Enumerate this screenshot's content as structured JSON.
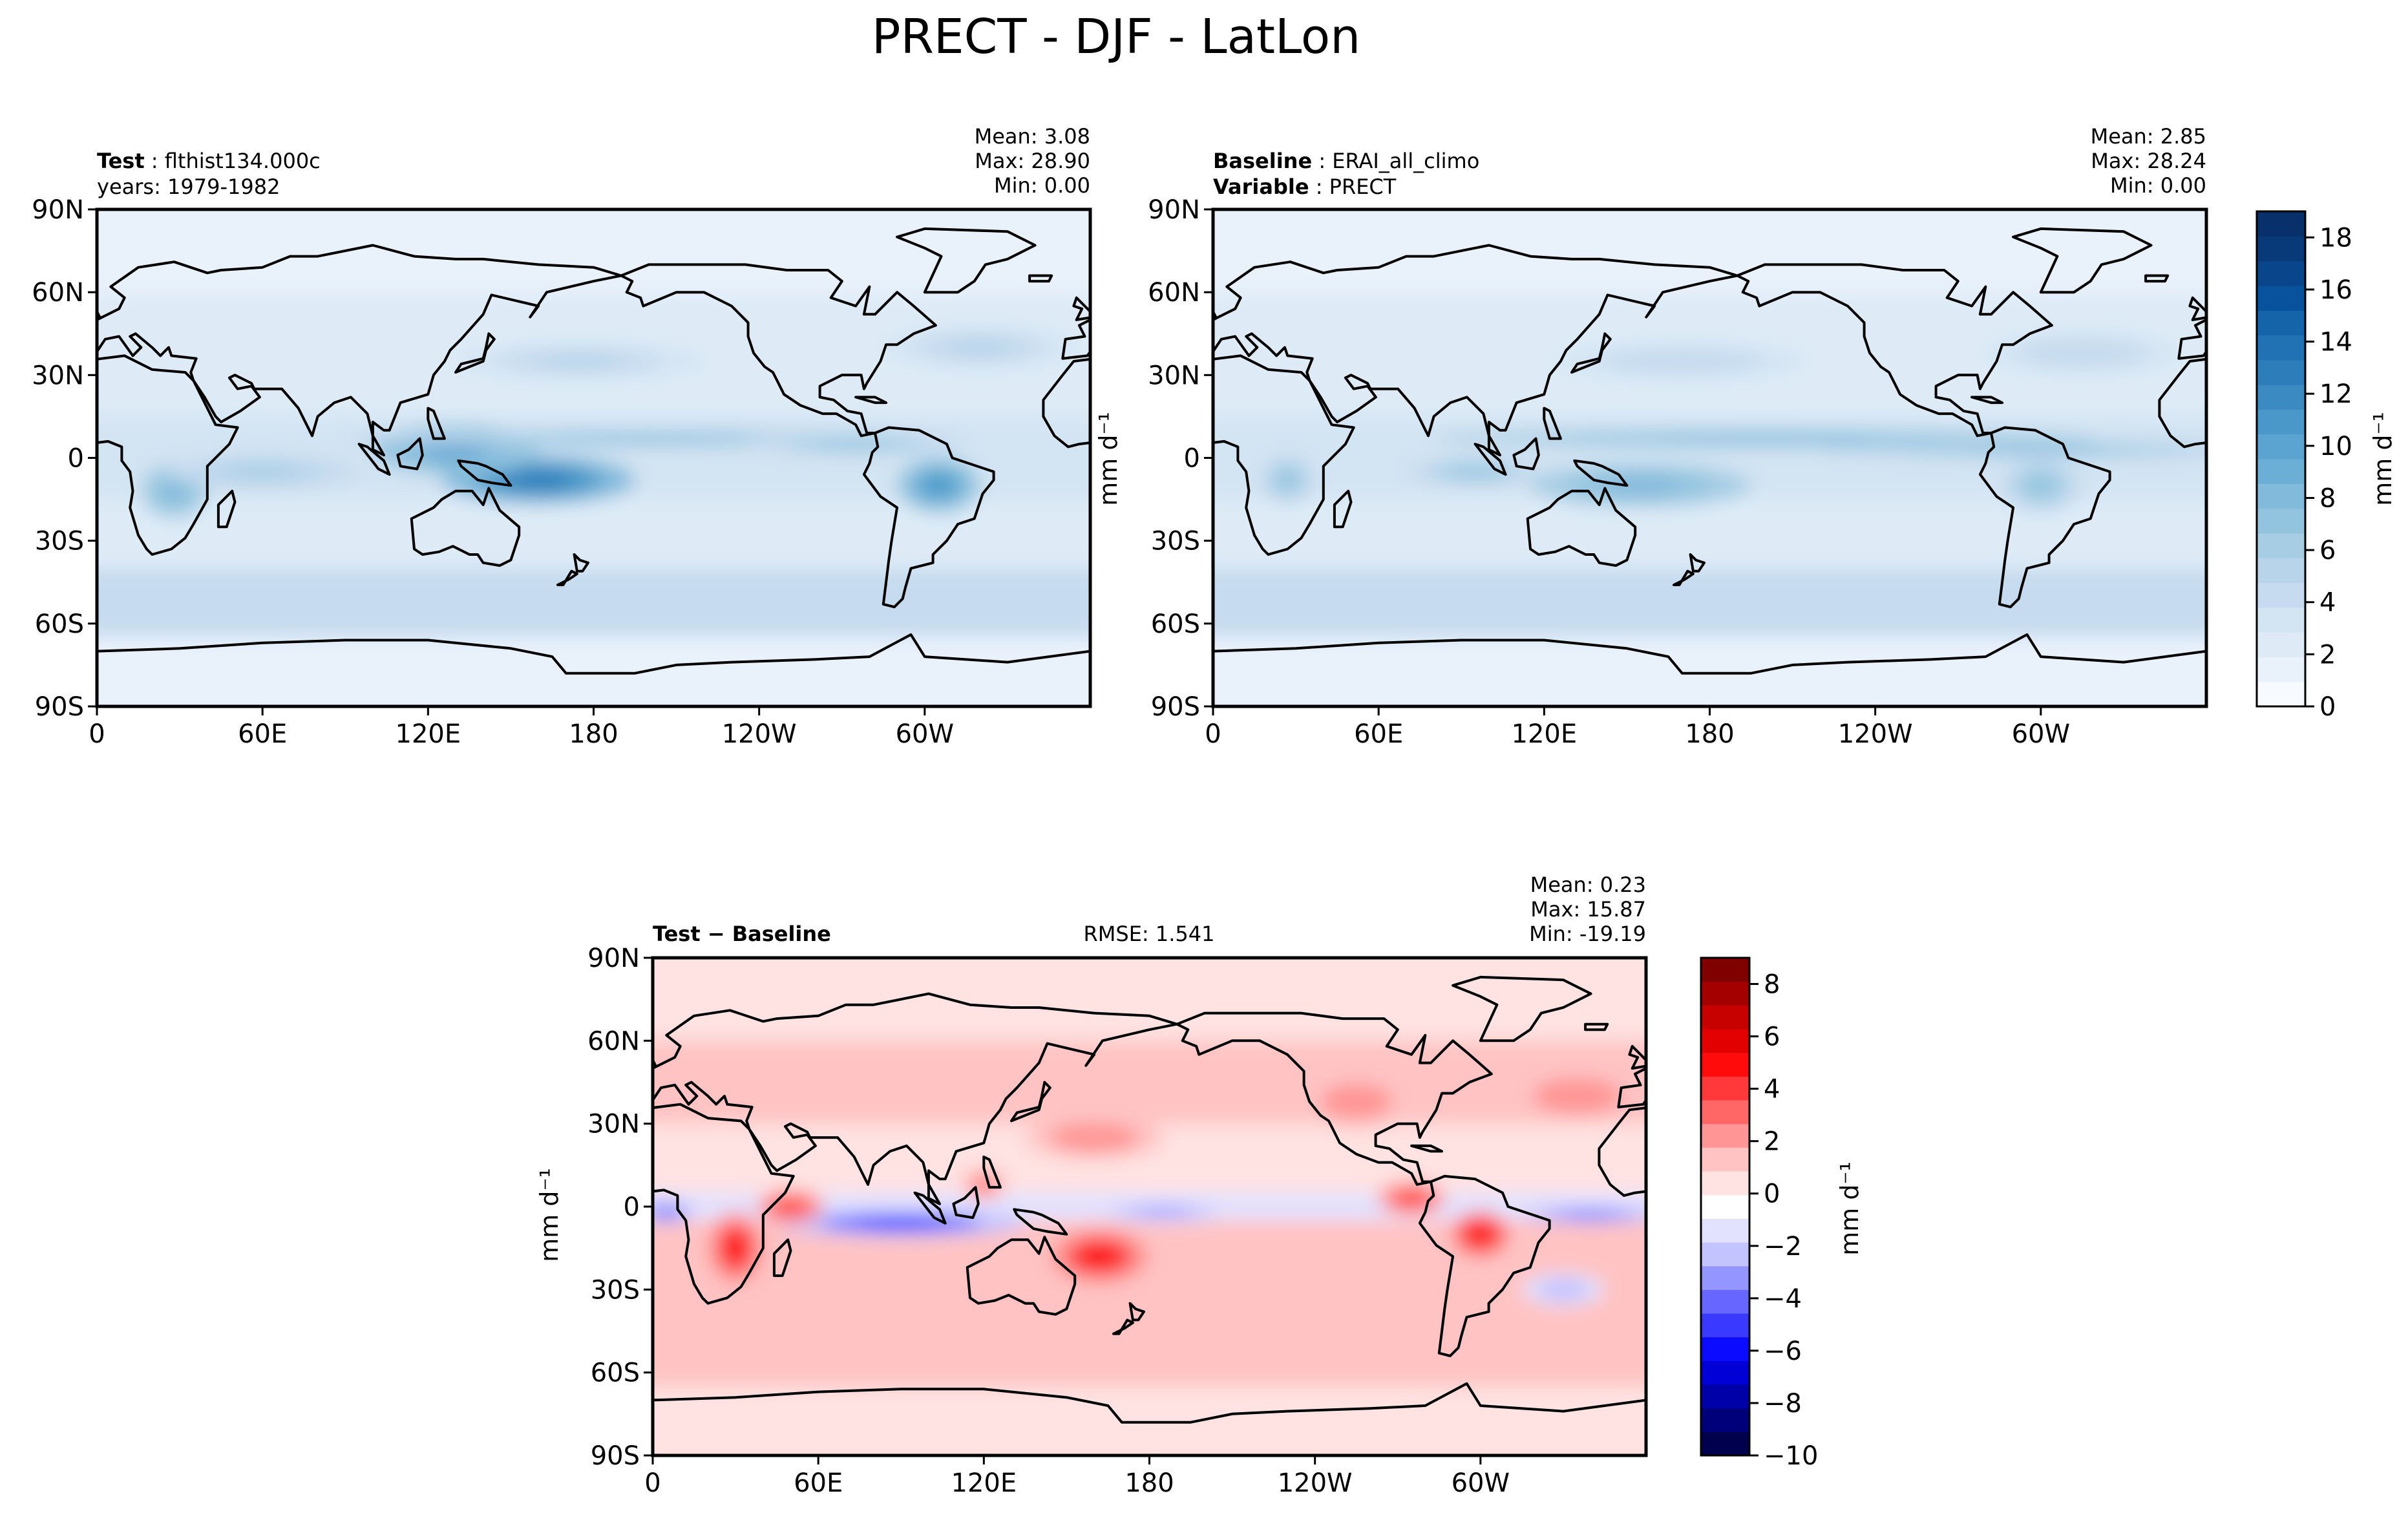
{
  "figure": {
    "title": "PRECT - DJF - LatLon"
  },
  "colors": {
    "blues": [
      "#f7fbff",
      "#e9f2fb",
      "#deebf7",
      "#d3e4f3",
      "#c6dbef",
      "#b7d4ea",
      "#a6cde4",
      "#93c4df",
      "#82badb",
      "#6baed6",
      "#5ba3d0",
      "#4a98c9",
      "#3b8bc2",
      "#2d7dbb",
      "#2171b5",
      "#1563a9",
      "#08519c",
      "#08458a",
      "#083979",
      "#08306b"
    ],
    "diverging": [
      "#00004c",
      "#00007a",
      "#0000a8",
      "#0000d7",
      "#0b0bff",
      "#3939ff",
      "#6767ff",
      "#9595ff",
      "#c3c3ff",
      "#e2e2ff",
      "#ffffff",
      "#ffe2e2",
      "#ffc3c3",
      "#ff9595",
      "#ff6767",
      "#ff3939",
      "#ff0b0b",
      "#e30000",
      "#c70000",
      "#a50000",
      "#800000"
    ],
    "land_outline": "#000000"
  },
  "chart_data": [
    {
      "type": "heatmap",
      "panel": "test",
      "label_bold": "Test",
      "label_value": "flthist134.000c",
      "subtitle": "years: 1979-1982",
      "stats": {
        "mean": "Mean:  3.08",
        "max": "Max: 28.90",
        "min": "Min:  0.00"
      },
      "x_ticks": [
        "0",
        "60E",
        "120E",
        "180",
        "120W",
        "60W"
      ],
      "x_tick_values": [
        0,
        60,
        120,
        180,
        240,
        300
      ],
      "y_ticks": [
        "90N",
        "60N",
        "30N",
        "0",
        "30S",
        "60S",
        "90S"
      ],
      "y_tick_values": [
        90,
        60,
        30,
        0,
        -30,
        -60,
        -90
      ],
      "xlim": [
        0,
        360
      ],
      "ylim": [
        -90,
        90
      ],
      "colormap": "blues",
      "clim": [
        0,
        19
      ],
      "features": [
        {
          "lon": 160,
          "lat": -8,
          "value": 15,
          "lon_w": 35,
          "lat_w": 9
        },
        {
          "lon": 130,
          "lat": 3,
          "value": 12,
          "lon_w": 30,
          "lat_w": 9
        },
        {
          "lon": 200,
          "lat": 7,
          "value": 9,
          "lon_w": 110,
          "lat_w": 3
        },
        {
          "lon": 275,
          "lat": 5,
          "value": 8,
          "lon_w": 40,
          "lat_w": 4
        },
        {
          "lon": 305,
          "lat": -10,
          "value": 13,
          "lon_w": 15,
          "lat_w": 10
        },
        {
          "lon": 28,
          "lat": -12,
          "value": 10,
          "lon_w": 12,
          "lat_w": 10
        },
        {
          "lon": 60,
          "lat": -5,
          "value": 7,
          "lon_w": 35,
          "lat_w": 6
        },
        {
          "lon": 175,
          "lat": 35,
          "value": 6,
          "lon_w": 45,
          "lat_w": 7
        },
        {
          "lon": 320,
          "lat": 40,
          "value": 6,
          "lon_w": 35,
          "lat_w": 8
        }
      ]
    },
    {
      "type": "heatmap",
      "panel": "baseline",
      "label_bold": "Baseline",
      "label_value": "ERAI_all_climo",
      "subtitle_bold": "Variable",
      "subtitle_value": "PRECT",
      "stats": {
        "mean": "Mean:  2.85",
        "max": "Max: 28.24",
        "min": "Min:  0.00"
      },
      "x_ticks": [
        "0",
        "60E",
        "120E",
        "180",
        "120W",
        "60W"
      ],
      "x_tick_values": [
        0,
        60,
        120,
        180,
        240,
        300
      ],
      "y_ticks": [
        "90N",
        "60N",
        "30N",
        "0",
        "30S",
        "60S",
        "90S"
      ],
      "y_tick_values": [
        90,
        60,
        30,
        0,
        -30,
        -60,
        -90
      ],
      "xlim": [
        0,
        360
      ],
      "ylim": [
        -90,
        90
      ],
      "colormap": "blues",
      "clim": [
        0,
        19
      ],
      "colorbar_ticks": [
        0,
        2,
        4,
        6,
        8,
        10,
        12,
        14,
        16,
        18
      ],
      "colorbar_label": "mm d⁻¹",
      "features": [
        {
          "lon": 155,
          "lat": -10,
          "value": 10,
          "lon_w": 40,
          "lat_w": 8
        },
        {
          "lon": 200,
          "lat": 7,
          "value": 10,
          "lon_w": 120,
          "lat_w": 3
        },
        {
          "lon": 300,
          "lat": 3,
          "value": 9,
          "lon_w": 80,
          "lat_w": 3
        },
        {
          "lon": 300,
          "lat": -10,
          "value": 8,
          "lon_w": 15,
          "lat_w": 10
        },
        {
          "lon": 27,
          "lat": -8,
          "value": 8,
          "lon_w": 10,
          "lat_w": 9
        },
        {
          "lon": 95,
          "lat": -5,
          "value": 8,
          "lon_w": 25,
          "lat_w": 5
        },
        {
          "lon": 170,
          "lat": 35,
          "value": 5,
          "lon_w": 45,
          "lat_w": 7
        },
        {
          "lon": 315,
          "lat": 38,
          "value": 5,
          "lon_w": 35,
          "lat_w": 8
        }
      ]
    },
    {
      "type": "heatmap",
      "panel": "difference",
      "label_bold": "Test − Baseline",
      "rmse": "RMSE: 1.541",
      "stats": {
        "mean": "Mean:  0.23",
        "max": "Max: 15.87",
        "min": "Min: -19.19"
      },
      "x_ticks": [
        "0",
        "60E",
        "120E",
        "180",
        "120W",
        "60W"
      ],
      "x_tick_values": [
        0,
        60,
        120,
        180,
        240,
        300
      ],
      "y_ticks": [
        "90N",
        "60N",
        "30N",
        "0",
        "30S",
        "60S",
        "90S"
      ],
      "y_tick_values": [
        90,
        60,
        30,
        0,
        -30,
        -60,
        -90
      ],
      "xlim": [
        0,
        360
      ],
      "ylim": [
        -90,
        90
      ],
      "colormap": "diverging",
      "clim": [
        -10,
        9
      ],
      "colorbar_ticks": [
        -10,
        -8,
        -6,
        -4,
        -2,
        0,
        2,
        4,
        6,
        8
      ],
      "colorbar_tick_labels": [
        "−10",
        "−8",
        "−6",
        "−4",
        "−2",
        "0",
        "2",
        "4",
        "6",
        "8"
      ],
      "colorbar_label": "mm d⁻¹",
      "features": [
        {
          "lon": 90,
          "lat": -6,
          "value": -6,
          "lon_w": 45,
          "lat_w": 5
        },
        {
          "lon": 5,
          "lat": -2,
          "value": -5,
          "lon_w": 10,
          "lat_w": 4
        },
        {
          "lon": 185,
          "lat": -2,
          "value": -4,
          "lon_w": 30,
          "lat_w": 4
        },
        {
          "lon": 340,
          "lat": -3,
          "value": -5,
          "lon_w": 25,
          "lat_w": 3
        },
        {
          "lon": 330,
          "lat": -30,
          "value": -3,
          "lon_w": 15,
          "lat_w": 6
        },
        {
          "lon": 30,
          "lat": -15,
          "value": 6,
          "lon_w": 10,
          "lat_w": 13
        },
        {
          "lon": 50,
          "lat": 0,
          "value": 5,
          "lon_w": 12,
          "lat_w": 6
        },
        {
          "lon": 162,
          "lat": -18,
          "value": 6,
          "lon_w": 18,
          "lat_w": 10
        },
        {
          "lon": 275,
          "lat": 3,
          "value": 5,
          "lon_w": 12,
          "lat_w": 6
        },
        {
          "lon": 300,
          "lat": -10,
          "value": 7,
          "lon_w": 10,
          "lat_w": 8
        },
        {
          "lon": 160,
          "lat": 25,
          "value": 3,
          "lon_w": 25,
          "lat_w": 8
        },
        {
          "lon": 255,
          "lat": 38,
          "value": 3,
          "lon_w": 20,
          "lat_w": 10
        },
        {
          "lon": 335,
          "lat": 40,
          "value": 3,
          "lon_w": 25,
          "lat_w": 10
        },
        {
          "lon": 120,
          "lat": 8,
          "value": 4,
          "lon_w": 8,
          "lat_w": 6
        }
      ]
    }
  ]
}
